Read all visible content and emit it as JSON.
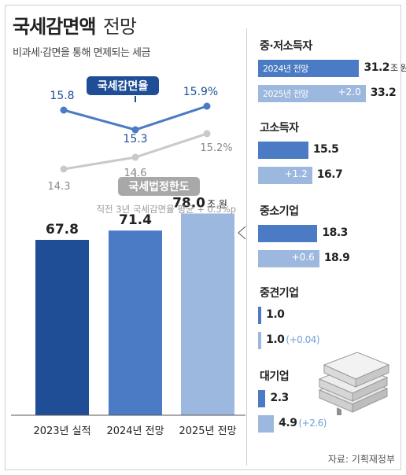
{
  "title_main": "국세감면액",
  "title_light": "전망",
  "subtitle": "비과세·감면을 통해 면제되는 세금",
  "colors": {
    "dark_blue": "#1f4e97",
    "mid_blue": "#4a7bc4",
    "light_blue": "#9db8de",
    "gray_line": "#c9c9c9",
    "increase_text": "#6fa0d8"
  },
  "chart_data": [
    {
      "type": "bar",
      "categories": [
        "2023년 실적",
        "2024년 전망",
        "2025년 전망"
      ],
      "values": [
        67.8,
        71.4,
        78.0
      ],
      "value_labels": [
        "67.8",
        "71.4",
        "78.0"
      ],
      "unit_label": "조 원",
      "ylim": [
        0,
        90
      ]
    },
    {
      "type": "line",
      "x": [
        "2023년 실적",
        "2024년 전망",
        "2025년 전망"
      ],
      "series": [
        {
          "name": "국세감면율",
          "values": [
            15.8,
            15.3,
            15.9
          ],
          "labels": [
            "15.8",
            "15.3",
            "15.9%"
          ]
        },
        {
          "name": "국세법정한도",
          "values": [
            14.3,
            14.6,
            15.2
          ],
          "labels": [
            "14.3",
            "14.6",
            "15.2%"
          ]
        }
      ],
      "ylim": [
        14.0,
        16.2
      ],
      "note": "직전 3년 국세감면율 평균 + 0.5%p"
    },
    {
      "type": "bar",
      "orientation": "horizontal",
      "series_labels": [
        "2024년 전망",
        "2025년 전망"
      ],
      "unit_label": "조 원",
      "xlim": [
        0,
        34
      ],
      "groups": [
        {
          "name": "중·저소득자",
          "v2024": 31.2,
          "v2025": 33.2,
          "increase": "+2.0"
        },
        {
          "name": "고소득자",
          "v2024": 15.5,
          "v2025": 16.7,
          "increase": "+1.2"
        },
        {
          "name": "중소기업",
          "v2024": 18.3,
          "v2025": 18.9,
          "increase": "+0.6"
        },
        {
          "name": "중견기업",
          "v2024": 1.0,
          "v2025": 1.0,
          "increase": "+0.04"
        },
        {
          "name": "대기업",
          "v2024": 2.3,
          "v2025": 4.9,
          "increase": "+2.6"
        }
      ]
    }
  ],
  "source": "자료: 기획재정부"
}
